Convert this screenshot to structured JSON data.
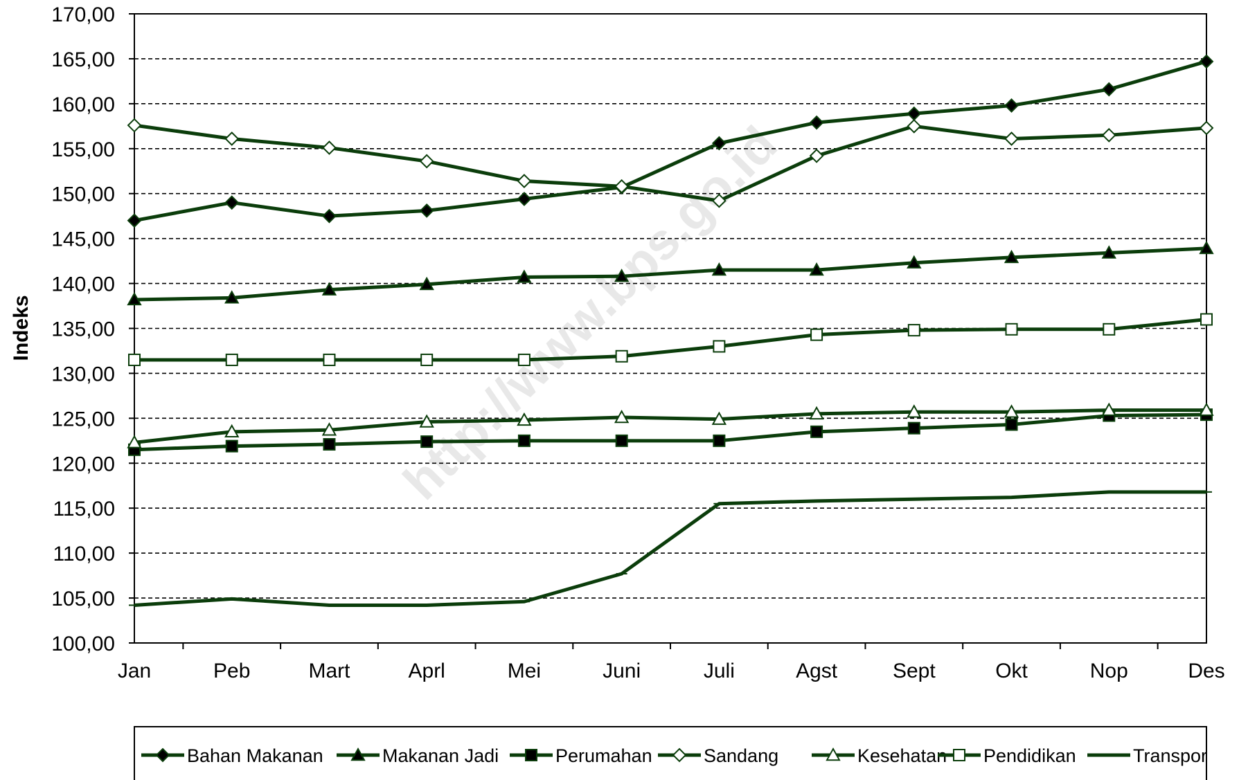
{
  "watermark": "http://www.bps.go.id",
  "chart_data": {
    "type": "line",
    "title": "",
    "xlabel": "",
    "ylabel": "Indeks",
    "ylim": [
      100,
      170
    ],
    "ytick_step": 5,
    "ytick_labels": [
      "100,00",
      "105,00",
      "110,00",
      "115,00",
      "120,00",
      "125,00",
      "130,00",
      "135,00",
      "140,00",
      "145,00",
      "150,00",
      "155,00",
      "160,00",
      "165,00",
      "170,00"
    ],
    "grid": "horizontal-dashed",
    "legend_position": "bottom",
    "line_color": "#0b3d0b",
    "categories": [
      "Jan",
      "Peb",
      "Mart",
      "Aprl",
      "Mei",
      "Juni",
      "Juli",
      "Agst",
      "Sept",
      "Okt",
      "Nop",
      "Des"
    ],
    "series": [
      {
        "name": "Bahan Makanan",
        "marker": "diamond-filled",
        "values": [
          147.0,
          149.0,
          147.5,
          148.1,
          149.4,
          150.7,
          155.6,
          157.9,
          158.9,
          159.8,
          161.6,
          164.7
        ]
      },
      {
        "name": "Makanan Jadi",
        "marker": "triangle-filled",
        "values": [
          138.2,
          138.4,
          139.3,
          139.9,
          140.7,
          140.8,
          141.5,
          141.5,
          142.3,
          142.9,
          143.4,
          143.9
        ]
      },
      {
        "name": "Perumahan",
        "marker": "square-filled",
        "values": [
          121.5,
          121.9,
          122.1,
          122.4,
          122.5,
          122.5,
          122.5,
          123.5,
          123.9,
          124.3,
          125.3,
          125.4
        ]
      },
      {
        "name": "Sandang",
        "marker": "diamond-open",
        "values": [
          157.6,
          156.1,
          155.1,
          153.6,
          151.4,
          150.8,
          149.2,
          154.2,
          157.5,
          156.1,
          156.5,
          157.3
        ]
      },
      {
        "name": "Kesehatan",
        "marker": "triangle-open",
        "values": [
          122.3,
          123.5,
          123.7,
          124.6,
          124.8,
          125.1,
          124.9,
          125.5,
          125.7,
          125.7,
          125.9,
          125.9
        ]
      },
      {
        "name": "Pendidikan",
        "marker": "square-open",
        "values": [
          131.5,
          131.5,
          131.5,
          131.5,
          131.5,
          131.9,
          133.0,
          134.3,
          134.8,
          134.9,
          134.9,
          136.0
        ]
      },
      {
        "name": "Transpor",
        "marker": "dash",
        "values": [
          104.2,
          104.9,
          104.2,
          104.2,
          104.6,
          107.7,
          115.5,
          115.8,
          116.0,
          116.2,
          116.8,
          116.8
        ]
      }
    ]
  }
}
